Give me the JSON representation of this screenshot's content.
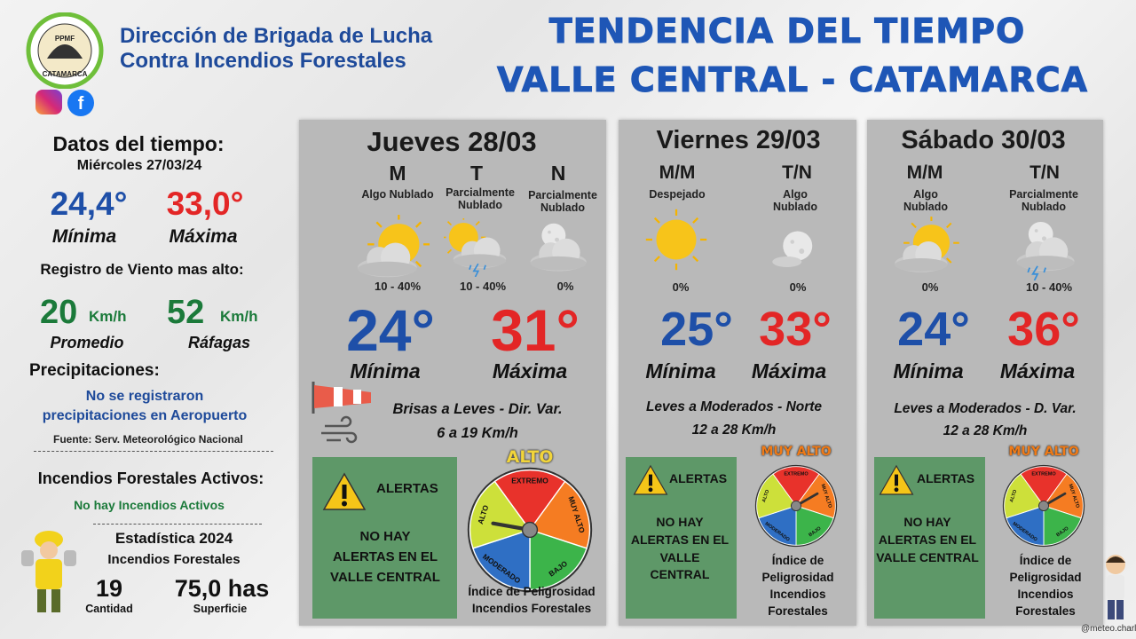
{
  "header": {
    "logo_top": "PPMF",
    "logo_bottom": "CATAMARCA",
    "org_line1": "Dirección de Brigada de Lucha",
    "org_line2": "Contra Incendios Forestales",
    "title_line1": "TENDENCIA DEL TIEMPO",
    "title_line2": "VALLE CENTRAL - CATAMARCA"
  },
  "sidebar": {
    "heading": "Datos del tiempo:",
    "date": "Miércoles 27/03/24",
    "min_value": "24,4°",
    "min_label": "Mínima",
    "max_value": "33,0°",
    "max_label": "Máxima",
    "wind_heading": "Registro de Viento mas alto:",
    "wind_avg": "20",
    "wind_avg_unit": "Km/h",
    "wind_avg_label": "Promedio",
    "gust": "52",
    "gust_unit": "Km/h",
    "gust_label": "Ráfagas",
    "precip_heading": "Precipitaciones:",
    "precip_line1": "No se registraron",
    "precip_line2": "precipitaciones en Aeropuerto",
    "source": "Fuente: Serv. Meteorológico Nacional",
    "fires_heading": "Incendios Forestales Activos:",
    "fires_text": "No hay Incendios Activos",
    "stats_heading": "Estadística 2024",
    "stats_sub": "Incendios Forestales",
    "count": "19",
    "count_label": "Cantidad",
    "area": "75,0 has",
    "area_label": "Superficie"
  },
  "gauge_labels": [
    "EXTREMO",
    "MUY ALTO",
    "BAJO",
    "MODERADO",
    "ALTO"
  ],
  "days": [
    {
      "title": "Jueves 28/03",
      "periods": [
        {
          "label": "M",
          "condition": "Algo Nublado",
          "rain": "10 - 40%"
        },
        {
          "label": "T",
          "condition": "Parcialmente Nublado",
          "rain": "10 - 40%"
        },
        {
          "label": "N",
          "condition": "Parcialmente Nublado",
          "rain": "0%"
        }
      ],
      "min": "24°",
      "min_label": "Mínima",
      "max": "31°",
      "max_label": "Máxima",
      "wind_line1": "Brisas a Leves - Dir. Var.",
      "wind_line2": "6 a 19 Km/h",
      "alert_title": "ALERTAS",
      "alert_lines": [
        "NO HAY",
        "ALERTAS EN EL",
        "VALLE CENTRAL"
      ],
      "danger_level": "ALTO",
      "danger_caption": [
        "Índice de Peligrosidad",
        "Incendios Forestales"
      ]
    },
    {
      "title": "Viernes 29/03",
      "periods": [
        {
          "label": "M/M",
          "condition": "Despejado",
          "rain": "0%"
        },
        {
          "label": "T/N",
          "condition": "Algo Nublado",
          "rain": "0%"
        }
      ],
      "min": "25°",
      "min_label": "Mínima",
      "max": "33°",
      "max_label": "Máxima",
      "wind_line1": "Leves a Moderados - Norte",
      "wind_line2": "12 a 28 Km/h",
      "alert_title": "ALERTAS",
      "alert_lines": [
        "NO HAY",
        "ALERTAS EN EL",
        "VALLE",
        "CENTRAL"
      ],
      "danger_level": "MUY ALTO",
      "danger_caption": [
        "Índice de",
        "Peligrosidad",
        "Incendios",
        "Forestales"
      ]
    },
    {
      "title": "Sábado 30/03",
      "periods": [
        {
          "label": "M/M",
          "condition": "Algo Nublado",
          "rain": "0%"
        },
        {
          "label": "T/N",
          "condition": "Parcialmente Nublado",
          "rain": "10 - 40%"
        }
      ],
      "min": "24°",
      "min_label": "Mínima",
      "max": "36°",
      "max_label": "Máxima",
      "wind_line1": "Leves a Moderados - D. Var.",
      "wind_line2": "12 a 28 Km/h",
      "alert_title": "ALERTAS",
      "alert_lines": [
        "NO HAY",
        "ALERTAS EN EL",
        "VALLE CENTRAL"
      ],
      "danger_level": "MUY ALTO",
      "danger_caption": [
        "Índice de",
        "Peligrosidad",
        "Incendios",
        "Forestales"
      ]
    }
  ],
  "footer": {
    "handle": "@meteo.charly"
  }
}
